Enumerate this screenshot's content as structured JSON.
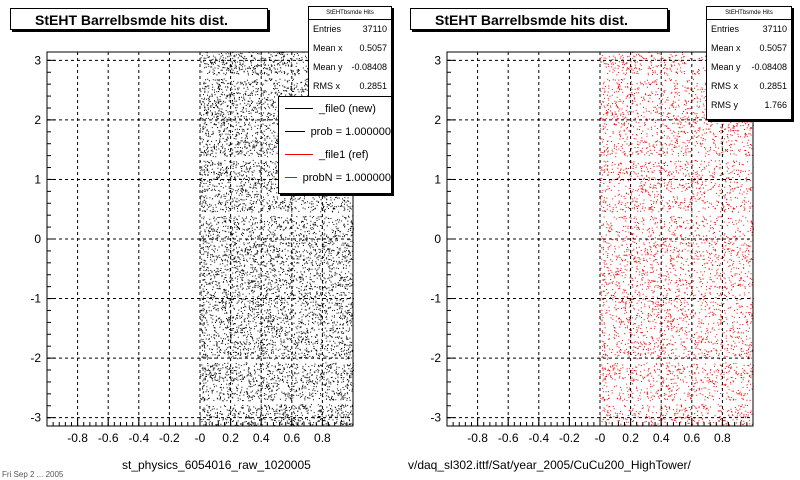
{
  "colors": {
    "new": "#000000",
    "ref": "#ff0000",
    "grid": "#000000",
    "frame": "#000000"
  },
  "panels": [
    {
      "title": "StEHT Barrelbsmde hits dist.",
      "stats": {
        "name": "StEHTbsmde Hits",
        "rows": [
          {
            "label": "Entries",
            "value": "37110"
          },
          {
            "label": "Mean x",
            "value": "0.5057"
          },
          {
            "label": "Mean y",
            "value": "-0.08408"
          },
          {
            "label": "RMS x",
            "value": "0.2851"
          }
        ]
      },
      "legend": [
        {
          "label": "_file0 (new)",
          "color": "#000000"
        },
        {
          "label": "prob = 1.000000",
          "color": "#000000"
        },
        {
          "label": "_file1 (ref)",
          "color": "#ff0000"
        },
        {
          "label": "probN = 1.000000",
          "color": "#ff0000"
        }
      ],
      "xtitle": "st_physics_6054016_raw_1020005"
    },
    {
      "title": "StEHT Barrelbsmde hits dist.",
      "stats": {
        "name": "StEHTbsmde Hits",
        "rows": [
          {
            "label": "Entries",
            "value": "37110"
          },
          {
            "label": "Mean x",
            "value": "0.5057"
          },
          {
            "label": "Mean y",
            "value": "-0.08408"
          },
          {
            "label": "RMS x",
            "value": "0.2851"
          },
          {
            "label": "RMS y",
            "value": "1.766"
          }
        ]
      },
      "xtitle": "v/daq_sl302.ittf/Sat/year_2005/CuCu200_HighTower/"
    }
  ],
  "stamp": "Fri Sep 2 ... 2005",
  "chart_data": [
    {
      "type": "scatter",
      "title": "StEHT Barrelbsmde hits dist.",
      "xlabel": "st_physics_6054016_raw_1020005",
      "ylabel": "",
      "xlim": [
        -1.0,
        1.0
      ],
      "ylim": [
        -3.14,
        3.14
      ],
      "xticks": [
        "-0.8",
        "-0.6",
        "-0.4",
        "-0.2",
        "-0",
        "0.2",
        "0.4",
        "0.6",
        "0.8"
      ],
      "yticks": [
        "-3",
        "-2",
        "-1",
        "0",
        "1",
        "2",
        "3"
      ],
      "grid": true,
      "series": [
        {
          "name": "_file0 (new)",
          "color": "#000000",
          "x_range": [
            0.0,
            1.0
          ],
          "y_range": [
            -3.14,
            3.14
          ],
          "entries": 37110
        }
      ],
      "gaps_y": [
        2.72,
        1.35,
        0.42,
        -2.05,
        -2.75
      ]
    },
    {
      "type": "scatter",
      "title": "StEHT Barrelbsmde hits dist.",
      "xlabel": "v/daq_sl302.ittf/Sat/year_2005/CuCu200_HighTower/",
      "ylabel": "",
      "xlim": [
        -1.0,
        1.0
      ],
      "ylim": [
        -3.14,
        3.14
      ],
      "xticks": [
        "-0.8",
        "-0.6",
        "-0.4",
        "-0.2",
        "-0",
        "0.2",
        "0.4",
        "0.6",
        "0.8"
      ],
      "yticks": [
        "-3",
        "-2",
        "-1",
        "0",
        "1",
        "2",
        "3"
      ],
      "grid": true,
      "series": [
        {
          "name": "_file1 (ref)",
          "color": "#ff0000",
          "x_range": [
            0.0,
            1.0
          ],
          "y_range": [
            -3.14,
            3.14
          ],
          "entries": 37110
        }
      ],
      "gaps_y": [
        2.72,
        1.35,
        0.42,
        -2.05,
        -2.75
      ]
    }
  ]
}
